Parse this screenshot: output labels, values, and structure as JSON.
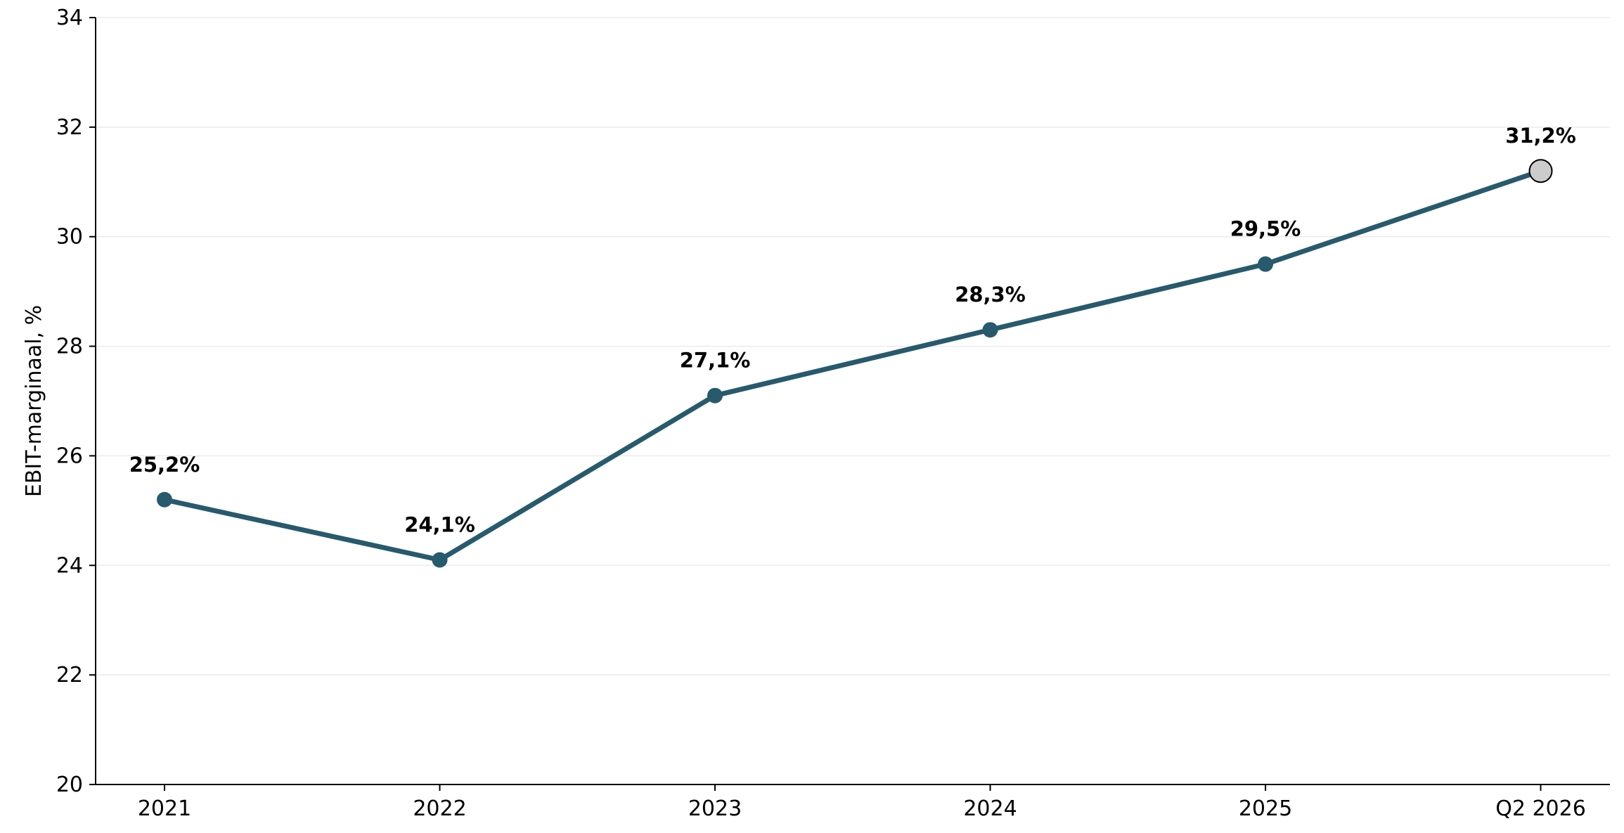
{
  "chart_data": {
    "type": "line",
    "categories": [
      "2021",
      "2022",
      "2023",
      "2024",
      "2025",
      "Q2 2026"
    ],
    "series": [
      {
        "values": [
          25.2,
          24.1,
          27.1,
          28.3,
          29.5,
          31.2
        ],
        "labels": [
          "25,2%",
          "24,1%",
          "27,1%",
          "28,3%",
          "29,5%",
          "31,2%"
        ]
      }
    ],
    "ylabel": "EBIT-marginaal, %",
    "xlabel": "",
    "ylim": [
      20,
      34
    ],
    "yticks": [
      20,
      22,
      24,
      26,
      28,
      30,
      32,
      34
    ],
    "grid": "horizontal",
    "highlight_last_point": true,
    "colors": {
      "line": "#275a6d",
      "marker": "#275a6d",
      "highlight_fill": "#cccccc",
      "highlight_stroke": "#000000"
    }
  }
}
